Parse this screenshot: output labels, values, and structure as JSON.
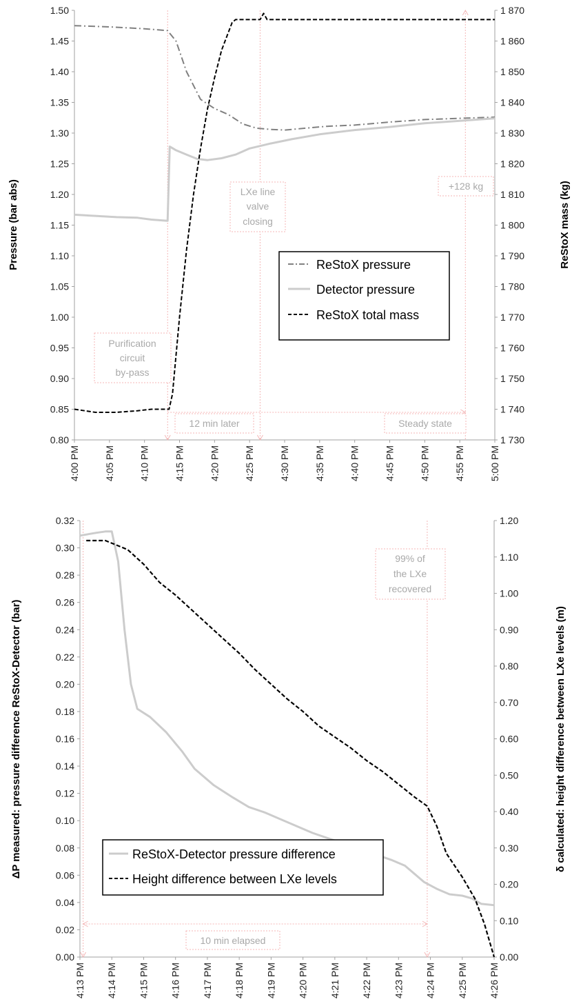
{
  "colors": {
    "restox_pressure": "#808080",
    "detector_pressure": "#cccccc",
    "mass": "#000000",
    "annotation": "#f4b6b6",
    "annotation_text": "#a9a9a9"
  },
  "chart_data": [
    {
      "type": "line",
      "ylabel": "Pressure (bar abs)",
      "y2label": "ReStoX mass (kg)",
      "x_ticks": [
        "4:00 PM",
        "4:05 PM",
        "4:10 PM",
        "4:15 PM",
        "4:20 PM",
        "4:25 PM",
        "4:30 PM",
        "4:35 PM",
        "4:40 PM",
        "4:45 PM",
        "4:50 PM",
        "4:55 PM",
        "5:00 PM"
      ],
      "y_ticks": [
        "0.80",
        "0.85",
        "0.90",
        "0.95",
        "1.00",
        "1.05",
        "1.10",
        "1.15",
        "1.20",
        "1.25",
        "1.30",
        "1.35",
        "1.40",
        "1.45",
        "1.50"
      ],
      "y2_ticks": [
        "1 730",
        "1 740",
        "1 750",
        "1 760",
        "1 770",
        "1 780",
        "1 790",
        "1 800",
        "1 810",
        "1 820",
        "1 830",
        "1 840",
        "1 850",
        "1 860",
        "1 870"
      ],
      "xlim_min": [
        0,
        60
      ],
      "ylim": [
        0.8,
        1.5
      ],
      "y2lim": [
        1730,
        1870
      ],
      "legend_position": "center-right",
      "series": [
        {
          "name": "ReStoX pressure",
          "axis": "left",
          "style": "dashdot",
          "points": [
            [
              0,
              1.475
            ],
            [
              5,
              1.473
            ],
            [
              10,
              1.47
            ],
            [
              13.3,
              1.467
            ],
            [
              14.5,
              1.45
            ],
            [
              16,
              1.4
            ],
            [
              18,
              1.355
            ],
            [
              20,
              1.34
            ],
            [
              22,
              1.33
            ],
            [
              24,
              1.315
            ],
            [
              26,
              1.308
            ],
            [
              28,
              1.306
            ],
            [
              30,
              1.305
            ],
            [
              33,
              1.308
            ],
            [
              36,
              1.311
            ],
            [
              40,
              1.313
            ],
            [
              45,
              1.318
            ],
            [
              50,
              1.322
            ],
            [
              55,
              1.324
            ],
            [
              60,
              1.326
            ]
          ]
        },
        {
          "name": "Detector pressure",
          "axis": "left",
          "style": "solid",
          "points": [
            [
              0,
              1.167
            ],
            [
              3,
              1.165
            ],
            [
              6,
              1.163
            ],
            [
              9,
              1.162
            ],
            [
              11,
              1.159
            ],
            [
              13.3,
              1.157
            ],
            [
              13.6,
              1.278
            ],
            [
              14.5,
              1.272
            ],
            [
              16,
              1.265
            ],
            [
              17.5,
              1.258
            ],
            [
              19,
              1.256
            ],
            [
              21,
              1.259
            ],
            [
              23,
              1.265
            ],
            [
              25,
              1.275
            ],
            [
              28,
              1.283
            ],
            [
              31,
              1.29
            ],
            [
              35,
              1.298
            ],
            [
              40,
              1.305
            ],
            [
              45,
              1.31
            ],
            [
              50,
              1.316
            ],
            [
              55,
              1.32
            ],
            [
              60,
              1.324
            ]
          ]
        },
        {
          "name": "ReStoX total mass",
          "axis": "right",
          "style": "dashed",
          "points": [
            [
              0,
              1740
            ],
            [
              3,
              1739
            ],
            [
              6,
              1739
            ],
            [
              9,
              1739.5
            ],
            [
              11,
              1740
            ],
            [
              13.5,
              1740
            ],
            [
              14,
              1745
            ],
            [
              15,
              1770
            ],
            [
              16,
              1792
            ],
            [
              17,
              1810
            ],
            [
              18,
              1825
            ],
            [
              19,
              1838
            ],
            [
              20,
              1848
            ],
            [
              21,
              1857
            ],
            [
              22,
              1863
            ],
            [
              22.5,
              1866
            ],
            [
              23,
              1867
            ],
            [
              26.5,
              1867
            ],
            [
              27,
              1869
            ],
            [
              27.5,
              1867
            ],
            [
              35,
              1867
            ],
            [
              45,
              1867
            ],
            [
              55,
              1867
            ],
            [
              60,
              1867
            ]
          ]
        }
      ],
      "annotations": [
        {
          "lines": [
            "Purification",
            "circuit",
            "by-pass"
          ]
        },
        {
          "lines": [
            "LXe line",
            "valve",
            "closing"
          ]
        },
        {
          "lines": [
            "+128 kg"
          ]
        },
        {
          "lines": [
            "12 min later"
          ]
        },
        {
          "lines": [
            "Steady state"
          ]
        }
      ]
    },
    {
      "type": "line",
      "ylabel": "ΔP measured: pressure difference ReStoX-Detector (bar)",
      "y2label": "δ calculated: height difference between LXe levels (m)",
      "x_ticks": [
        "4:13 PM",
        "4:14 PM",
        "4:15 PM",
        "4:16 PM",
        "4:17 PM",
        "4:18 PM",
        "4:19 PM",
        "4:20 PM",
        "4:21 PM",
        "4:22 PM",
        "4:23 PM",
        "4:24 PM",
        "4:25 PM",
        "4:26 PM"
      ],
      "y_ticks": [
        "0.00",
        "0.02",
        "0.04",
        "0.06",
        "0.08",
        "0.10",
        "0.12",
        "0.14",
        "0.16",
        "0.18",
        "0.20",
        "0.22",
        "0.24",
        "0.26",
        "0.28",
        "0.30",
        "0.32"
      ],
      "y2_ticks": [
        "0.00",
        "0.10",
        "0.20",
        "0.30",
        "0.40",
        "0.50",
        "0.60",
        "0.70",
        "0.80",
        "0.90",
        "1.00",
        "1.10",
        "1.20"
      ],
      "xlim_min": [
        0,
        13
      ],
      "ylim": [
        0.0,
        0.32
      ],
      "y2lim": [
        0.0,
        1.2
      ],
      "legend_position": "bottom-left",
      "series": [
        {
          "name": "ReStoX-Detector pressure difference",
          "axis": "left",
          "style": "solid",
          "points": [
            [
              0,
              0.309
            ],
            [
              0.5,
              0.311
            ],
            [
              0.8,
              0.312
            ],
            [
              1.0,
              0.312
            ],
            [
              1.2,
              0.29
            ],
            [
              1.4,
              0.24
            ],
            [
              1.6,
              0.2
            ],
            [
              1.8,
              0.182
            ],
            [
              2.2,
              0.176
            ],
            [
              2.7,
              0.165
            ],
            [
              3.2,
              0.151
            ],
            [
              3.6,
              0.138
            ],
            [
              4.2,
              0.126
            ],
            [
              4.8,
              0.117
            ],
            [
              5.3,
              0.11
            ],
            [
              5.8,
              0.106
            ],
            [
              6.3,
              0.101
            ],
            [
              6.8,
              0.096
            ],
            [
              7.3,
              0.091
            ],
            [
              7.8,
              0.087
            ],
            [
              8.3,
              0.083
            ],
            [
              8.8,
              0.079
            ],
            [
              9.3,
              0.075
            ],
            [
              9.8,
              0.071
            ],
            [
              10.2,
              0.067
            ],
            [
              10.5,
              0.061
            ],
            [
              10.8,
              0.055
            ],
            [
              11.2,
              0.05
            ],
            [
              11.6,
              0.046
            ],
            [
              12.0,
              0.045
            ],
            [
              12.3,
              0.043
            ],
            [
              12.6,
              0.039
            ],
            [
              13.0,
              0.038
            ]
          ]
        },
        {
          "name": "Height difference between LXe levels",
          "axis": "right",
          "style": "dashed",
          "points": [
            [
              0.2,
              1.145
            ],
            [
              0.8,
              1.145
            ],
            [
              1.5,
              1.12
            ],
            [
              2.0,
              1.08
            ],
            [
              2.5,
              1.03
            ],
            [
              3.0,
              0.995
            ],
            [
              3.5,
              0.955
            ],
            [
              4.0,
              0.915
            ],
            [
              4.5,
              0.875
            ],
            [
              5.0,
              0.835
            ],
            [
              5.5,
              0.79
            ],
            [
              6.0,
              0.75
            ],
            [
              6.5,
              0.71
            ],
            [
              7.0,
              0.675
            ],
            [
              7.5,
              0.635
            ],
            [
              8.0,
              0.605
            ],
            [
              8.5,
              0.575
            ],
            [
              9.0,
              0.54
            ],
            [
              9.5,
              0.51
            ],
            [
              10.0,
              0.475
            ],
            [
              10.5,
              0.44
            ],
            [
              10.9,
              0.415
            ],
            [
              11.2,
              0.36
            ],
            [
              11.5,
              0.285
            ],
            [
              12.0,
              0.22
            ],
            [
              12.4,
              0.16
            ],
            [
              12.7,
              0.09
            ],
            [
              13.0,
              0.0
            ]
          ]
        }
      ],
      "annotations": [
        {
          "lines": [
            "99% of",
            "the LXe",
            "recovered"
          ]
        },
        {
          "lines": [
            "10 min elapsed"
          ]
        }
      ]
    }
  ]
}
